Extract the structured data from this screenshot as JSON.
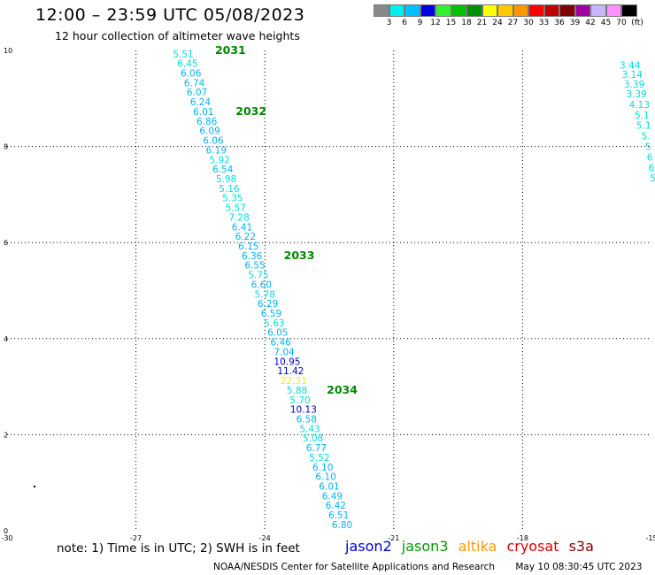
{
  "header": {
    "title": "12:00 – 23:59 UTC 05/08/2023",
    "subtitle": "12 hour collection of altimeter wave heights"
  },
  "color_scale": {
    "unit": "(ft)",
    "colors": [
      "#888888",
      "#00f0f0",
      "#00c0ff",
      "#0000e0",
      "#30f030",
      "#00c000",
      "#009000",
      "#ffff00",
      "#ffc800",
      "#ff9600",
      "#ff0000",
      "#c00000",
      "#800000",
      "#a000a0",
      "#c8b4ff",
      "#ff90ff",
      "#000000"
    ],
    "labels": [
      "3",
      "6",
      "9",
      "12",
      "15",
      "18",
      "21",
      "24",
      "27",
      "30",
      "33",
      "36",
      "39",
      "42",
      "45",
      "70"
    ]
  },
  "chart_data": {
    "type": "scatter",
    "title": "12:00 – 23:59 UTC 05/08/2023",
    "subtitle": "12 hour collection of altimeter wave heights",
    "xlim": [
      -30,
      -15
    ],
    "ylim": [
      0,
      10
    ],
    "xticks": [
      "-30",
      "-27",
      "-24",
      "-21",
      "-18",
      "-15"
    ],
    "yticks": [
      "0",
      "2",
      "4",
      "6",
      "8",
      "10"
    ],
    "grid": true,
    "series": [
      {
        "name": "jason3",
        "color": "#00cccc",
        "points": [
          {
            "x": -25.9,
            "y": 9.93,
            "label": "5.51",
            "color": "#00dede"
          },
          {
            "x": -25.8,
            "y": 9.73,
            "label": "6.45",
            "color": "#00dede"
          },
          {
            "x": -25.72,
            "y": 9.53,
            "label": "6.06",
            "color": "#00b4f0"
          },
          {
            "x": -25.64,
            "y": 9.33,
            "label": "6.74",
            "color": "#00b4f0"
          },
          {
            "x": -25.58,
            "y": 9.13,
            "label": "6.07",
            "color": "#00b4f0"
          },
          {
            "x": -25.5,
            "y": 8.93,
            "label": "6.24",
            "color": "#00b4f0"
          },
          {
            "x": -25.43,
            "y": 8.73,
            "label": "6.01",
            "color": "#00b4f0"
          },
          {
            "x": -25.35,
            "y": 8.53,
            "label": "6.86",
            "color": "#00b4f0"
          },
          {
            "x": -25.28,
            "y": 8.33,
            "label": "6.09",
            "color": "#00b4f0"
          },
          {
            "x": -25.2,
            "y": 8.13,
            "label": "6.06",
            "color": "#00b4f0"
          },
          {
            "x": -25.13,
            "y": 7.93,
            "label": "6.19",
            "color": "#00b4f0"
          },
          {
            "x": -25.05,
            "y": 7.73,
            "label": "5.92",
            "color": "#00dede"
          },
          {
            "x": -24.98,
            "y": 7.53,
            "label": "6.54",
            "color": "#00b4f0"
          },
          {
            "x": -24.9,
            "y": 7.33,
            "label": "5.98",
            "color": "#00dede"
          },
          {
            "x": -24.83,
            "y": 7.13,
            "label": "5.16",
            "color": "#00dede"
          },
          {
            "x": -24.75,
            "y": 6.93,
            "label": "5.35",
            "color": "#00dede"
          },
          {
            "x": -24.68,
            "y": 6.73,
            "label": "5.57",
            "color": "#00dede"
          },
          {
            "x": -24.6,
            "y": 6.53,
            "label": "7.28",
            "color": "#00dede"
          },
          {
            "x": -24.53,
            "y": 6.33,
            "label": "6.41",
            "color": "#00b4f0"
          },
          {
            "x": -24.45,
            "y": 6.13,
            "label": "6.22",
            "color": "#00b4f0"
          },
          {
            "x": -24.38,
            "y": 5.93,
            "label": "6.15",
            "color": "#00b4f0"
          },
          {
            "x": -24.3,
            "y": 5.73,
            "label": "6.36",
            "color": "#00b4f0"
          },
          {
            "x": -24.23,
            "y": 5.53,
            "label": "6.55",
            "color": "#00b4f0"
          },
          {
            "x": -24.15,
            "y": 5.33,
            "label": "5.75",
            "color": "#00dede"
          },
          {
            "x": -24.08,
            "y": 5.13,
            "label": "6.60",
            "color": "#00b4f0"
          },
          {
            "x": -24.0,
            "y": 4.93,
            "label": "5.78",
            "color": "#00dede"
          },
          {
            "x": -23.93,
            "y": 4.73,
            "label": "6.29",
            "color": "#00b4f0"
          },
          {
            "x": -23.85,
            "y": 4.53,
            "label": "6.59",
            "color": "#00b4f0"
          },
          {
            "x": -23.78,
            "y": 4.33,
            "label": "5.63",
            "color": "#00dede"
          },
          {
            "x": -23.7,
            "y": 4.13,
            "label": "6.05",
            "color": "#00b4f0"
          },
          {
            "x": -23.63,
            "y": 3.93,
            "label": "6.46",
            "color": "#00b4f0"
          },
          {
            "x": -23.55,
            "y": 3.73,
            "label": "7.04",
            "color": "#00b4f0"
          },
          {
            "x": -23.48,
            "y": 3.53,
            "label": "10.95",
            "color": "#0000cc"
          },
          {
            "x": -23.4,
            "y": 3.33,
            "label": "11.42",
            "color": "#0000cc"
          },
          {
            "x": -23.33,
            "y": 3.13,
            "label": "22.31",
            "color": "#f0f000"
          },
          {
            "x": -23.25,
            "y": 2.93,
            "label": "5.88",
            "color": "#00dede"
          },
          {
            "x": -23.18,
            "y": 2.73,
            "label": "5.70",
            "color": "#00dede"
          },
          {
            "x": -23.1,
            "y": 2.53,
            "label": "10.13",
            "color": "#0000cc"
          },
          {
            "x": -23.03,
            "y": 2.33,
            "label": "6.58",
            "color": "#00b4f0"
          },
          {
            "x": -22.95,
            "y": 2.13,
            "label": "5.43",
            "color": "#00dede"
          },
          {
            "x": -22.88,
            "y": 1.93,
            "label": "5.08",
            "color": "#00dede"
          },
          {
            "x": -22.8,
            "y": 1.73,
            "label": "6.77",
            "color": "#00b4f0"
          },
          {
            "x": -22.73,
            "y": 1.53,
            "label": "5.52",
            "color": "#00dede"
          },
          {
            "x": -22.65,
            "y": 1.33,
            "label": "6.10",
            "color": "#00b4f0"
          },
          {
            "x": -22.58,
            "y": 1.13,
            "label": "6.10",
            "color": "#00b4f0"
          },
          {
            "x": -22.5,
            "y": 0.93,
            "label": "6.01",
            "color": "#00b4f0"
          },
          {
            "x": -22.43,
            "y": 0.73,
            "label": "6.49",
            "color": "#00b4f0"
          },
          {
            "x": -22.35,
            "y": 0.53,
            "label": "6.42",
            "color": "#00b4f0"
          },
          {
            "x": -22.28,
            "y": 0.33,
            "label": "6.51",
            "color": "#00b4f0"
          },
          {
            "x": -22.2,
            "y": 0.13,
            "label": "6.80",
            "color": "#00b4f0"
          }
        ]
      },
      {
        "name": "jason3",
        "color": "#00cccc",
        "points": [
          {
            "x": -15.5,
            "y": 9.7,
            "label": "3.44",
            "color": "#00dede"
          },
          {
            "x": -15.45,
            "y": 9.5,
            "label": "3.14",
            "color": "#00dede"
          },
          {
            "x": -15.4,
            "y": 9.3,
            "label": "3.39",
            "color": "#00dede"
          },
          {
            "x": -15.35,
            "y": 9.1,
            "label": "3.39",
            "color": "#00dede"
          },
          {
            "x": -15.28,
            "y": 8.88,
            "label": "4.13",
            "color": "#00dede"
          },
          {
            "x": -15.22,
            "y": 8.66,
            "label": "5.1",
            "color": "#00dede"
          },
          {
            "x": -15.18,
            "y": 8.44,
            "label": "5.1",
            "color": "#00dede"
          },
          {
            "x": -15.13,
            "y": 8.22,
            "label": "5.",
            "color": "#00dede"
          },
          {
            "x": -15.08,
            "y": 8.0,
            "label": "5",
            "color": "#00dede"
          },
          {
            "x": -15.04,
            "y": 7.78,
            "label": "6",
            "color": "#00dede"
          },
          {
            "x": -15.0,
            "y": 7.56,
            "label": "6",
            "color": "#00dede"
          },
          {
            "x": -14.97,
            "y": 7.35,
            "label": "5",
            "color": "#00dede"
          }
        ]
      }
    ],
    "annotations": [
      {
        "x": -24.8,
        "y": 10.0,
        "text": "2031",
        "color": "#008800"
      },
      {
        "x": -24.32,
        "y": 8.73,
        "text": "2032",
        "color": "#008800"
      },
      {
        "x": -23.2,
        "y": 5.73,
        "text": "2033",
        "color": "#008800"
      },
      {
        "x": -22.2,
        "y": 2.93,
        "text": "2034",
        "color": "#008800"
      }
    ]
  },
  "note": "note: 1) Time is in UTC; 2) SWH is in feet",
  "satellites": [
    {
      "label": "jason2",
      "color": "#0000cc"
    },
    {
      "label": "jason3",
      "color": "#009900"
    },
    {
      "label": "altika",
      "color": "#ff9900"
    },
    {
      "label": "cryosat",
      "color": "#dd0000"
    },
    {
      "label": "s3a",
      "color": "#880000"
    }
  ],
  "footer": {
    "credit": "NOAA/NESDIS Center for Satellite Applications and Research",
    "timestamp": "May 10 08:30:45 UTC 2023"
  }
}
